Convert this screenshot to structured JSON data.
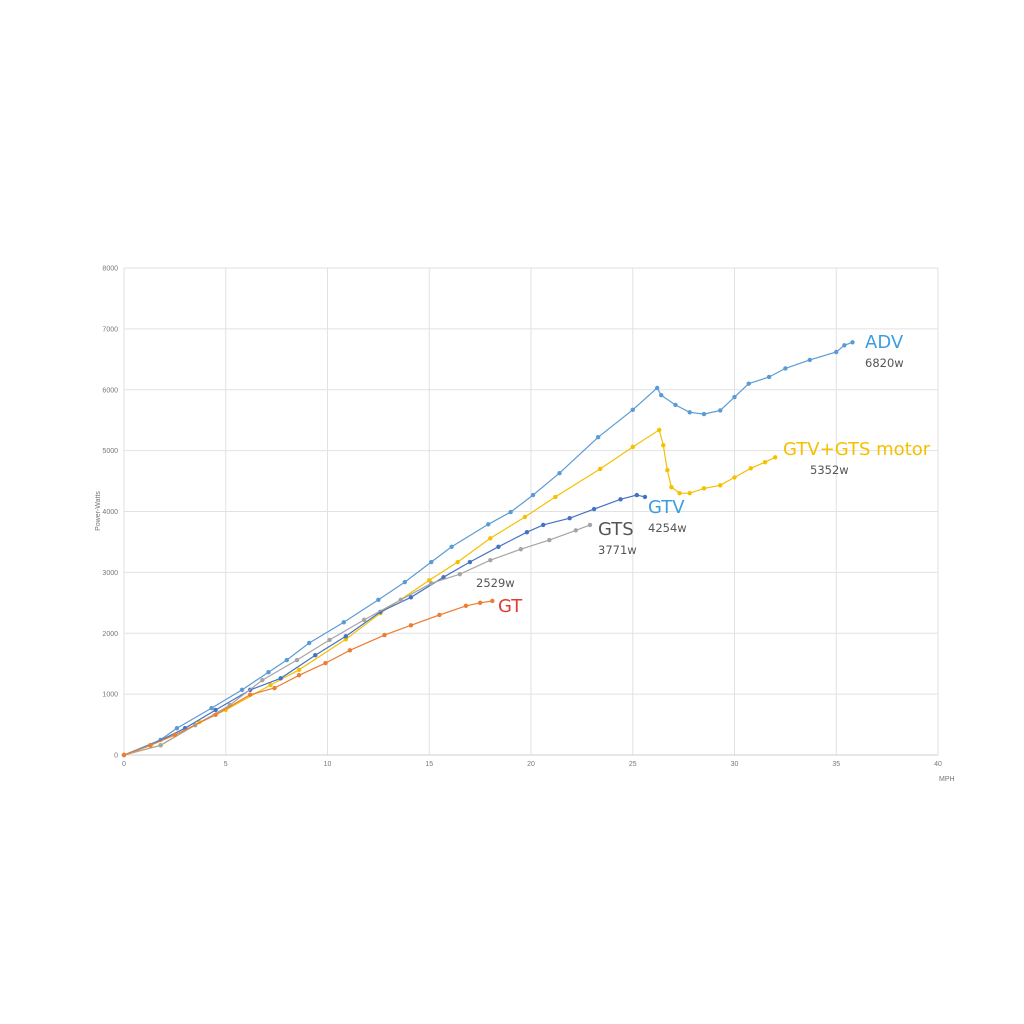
{
  "chart_data": {
    "type": "line",
    "title": "",
    "xlabel": "MPH",
    "ylabel": "Power-Watts",
    "xlim": [
      0,
      40
    ],
    "ylim": [
      0,
      8000
    ],
    "xticks": [
      0,
      5,
      10,
      15,
      20,
      25,
      30,
      35,
      40
    ],
    "yticks": [
      0,
      1000,
      2000,
      3000,
      4000,
      5000,
      6000,
      7000,
      8000
    ],
    "grid": true,
    "legend": "none (inline labels)",
    "series": [
      {
        "name": "ADV",
        "annotation": "6820w",
        "color": "#5b9bd5",
        "x": [
          0,
          1.8,
          2.6,
          4.3,
          5.8,
          7.1,
          8,
          9.1,
          10.8,
          12.5,
          13.8,
          15.1,
          16.1,
          17.9,
          19,
          20.1,
          21.4,
          23.3,
          25,
          26.2,
          26.4,
          27.1,
          27.8,
          28.5,
          29.3,
          30,
          30.7,
          31.7,
          32.5,
          33.7,
          35,
          35.4,
          35.8
        ],
        "y": [
          0,
          250,
          440,
          770,
          1070,
          1360,
          1560,
          1840,
          2180,
          2550,
          2840,
          3170,
          3420,
          3790,
          3990,
          4270,
          4630,
          5220,
          5670,
          6030,
          5910,
          5750,
          5630,
          5600,
          5660,
          5880,
          6100,
          6210,
          6350,
          6490,
          6620,
          6730,
          6780
        ]
      },
      {
        "name": "GTV+GTS motor",
        "annotation": "5352w",
        "color": "#f5c000",
        "x": [
          0,
          1.8,
          3.7,
          5,
          7.2,
          8.6,
          10.9,
          12.6,
          15,
          16.4,
          18,
          19.7,
          21.2,
          23.4,
          25,
          26.3,
          26.5,
          26.7,
          26.9,
          27.3,
          27.8,
          28.5,
          29.3,
          30,
          30.8,
          31.5,
          32
        ],
        "y": [
          0,
          160,
          540,
          740,
          1150,
          1400,
          1900,
          2330,
          2870,
          3170,
          3560,
          3910,
          4240,
          4700,
          5060,
          5340,
          5090,
          4680,
          4400,
          4300,
          4300,
          4380,
          4430,
          4560,
          4710,
          4810,
          4890
        ]
      },
      {
        "name": "GTV",
        "annotation": "4254w",
        "color": "#4472c4",
        "x": [
          0,
          1.3,
          3,
          4.5,
          6.2,
          7.7,
          9.4,
          10.9,
          12.6,
          14.1,
          15.7,
          17,
          18.4,
          19.8,
          20.6,
          21.9,
          23.1,
          24.4,
          25.2,
          25.6
        ],
        "y": [
          0,
          160,
          440,
          740,
          1070,
          1260,
          1640,
          1950,
          2350,
          2590,
          2920,
          3170,
          3420,
          3660,
          3780,
          3890,
          4040,
          4200,
          4270,
          4240
        ]
      },
      {
        "name": "GTS",
        "annotation": "3771w",
        "color": "#a5a5a5",
        "x": [
          0,
          1.8,
          3.5,
          5.2,
          6.8,
          8.5,
          10.1,
          11.8,
          13.6,
          15.1,
          16.5,
          18,
          19.5,
          20.9,
          22.2,
          22.9
        ],
        "y": [
          0,
          160,
          490,
          820,
          1230,
          1560,
          1890,
          2220,
          2550,
          2820,
          2970,
          3200,
          3380,
          3530,
          3690,
          3780
        ]
      },
      {
        "name": "GT",
        "annotation": "2529w",
        "color": "#ed7d31",
        "label_color": "#e03c31",
        "x": [
          0,
          1.3,
          2.5,
          4.5,
          6.2,
          7.4,
          8.6,
          9.9,
          11.1,
          12.8,
          14.1,
          15.5,
          16.8,
          17.5,
          18.1
        ],
        "y": [
          0,
          160,
          330,
          660,
          990,
          1100,
          1310,
          1510,
          1720,
          1970,
          2130,
          2300,
          2450,
          2500,
          2530
        ]
      }
    ]
  }
}
